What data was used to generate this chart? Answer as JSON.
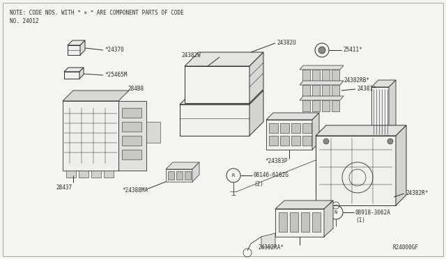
{
  "bg_color": "#f5f5f0",
  "line_color": "#2a2a2a",
  "note_line1": "NOTE: CODE NOS. WITH * × * ARE COMPONENT PARTS OF CODE",
  "note_line2": "NO. 24012",
  "diagram_id": "R24000GF",
  "figw": 6.4,
  "figh": 3.72,
  "dpi": 100
}
